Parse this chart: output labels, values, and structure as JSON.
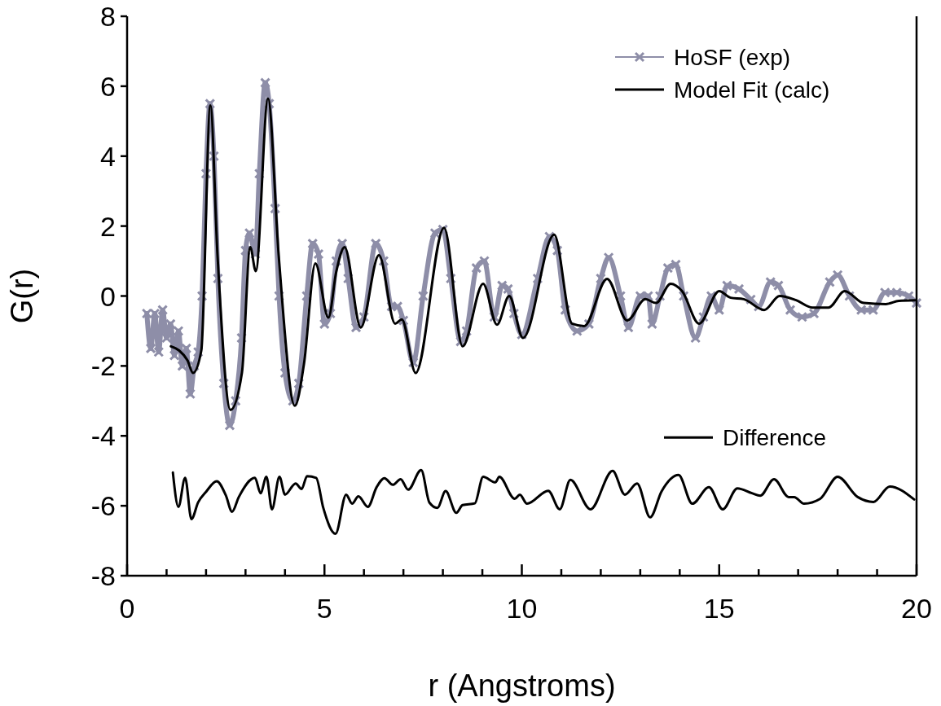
{
  "chart_data": {
    "type": "line",
    "xlabel": "r (Angstroms)",
    "ylabel": "G(r)",
    "xlim": [
      0,
      20
    ],
    "ylim": [
      -8,
      8
    ],
    "xticks": [
      0,
      {
        "value": 1,
        "label": null
      },
      {
        "value": 2,
        "label": null
      },
      {
        "value": 3,
        "label": null
      },
      {
        "value": 4,
        "label": null
      },
      5,
      {
        "value": 6,
        "label": null
      },
      {
        "value": 7,
        "label": null
      },
      {
        "value": 8,
        "label": null
      },
      {
        "value": 9,
        "label": null
      },
      10,
      {
        "value": 11,
        "label": null
      },
      {
        "value": 12,
        "label": null
      },
      {
        "value": 13,
        "label": null
      },
      {
        "value": 14,
        "label": null
      },
      15,
      {
        "value": 16,
        "label": null
      },
      {
        "value": 17,
        "label": null
      },
      {
        "value": 18,
        "label": null
      },
      {
        "value": 19,
        "label": null
      },
      20
    ],
    "yticks": [
      -8,
      -6,
      -4,
      -2,
      0,
      2,
      4,
      6,
      8
    ],
    "grid": false,
    "legend": "top right",
    "series": [
      {
        "name": "HoSF (exp)",
        "color": "#8e8ea8",
        "marker": "cross",
        "x": [
          0.5,
          0.6,
          0.7,
          0.8,
          0.9,
          1.0,
          1.1,
          1.2,
          1.3,
          1.4,
          1.5,
          1.6,
          1.7,
          1.8,
          1.9,
          2.0,
          2.1,
          2.2,
          2.3,
          2.45,
          2.6,
          2.75,
          2.9,
          3.0,
          3.1,
          3.25,
          3.35,
          3.5,
          3.6,
          3.75,
          3.85,
          4.0,
          4.2,
          4.35,
          4.55,
          4.7,
          4.85,
          5.0,
          5.15,
          5.3,
          5.45,
          5.6,
          5.8,
          6.0,
          6.3,
          6.5,
          6.7,
          6.85,
          7.0,
          7.25,
          7.5,
          7.8,
          8.0,
          8.2,
          8.45,
          8.6,
          8.85,
          9.05,
          9.3,
          9.5,
          9.65,
          9.8,
          10.0,
          10.4,
          10.7,
          10.9,
          11.1,
          11.4,
          11.7,
          12.0,
          12.2,
          12.5,
          12.7,
          13.0,
          13.2,
          13.3,
          13.5,
          13.7,
          13.9,
          14.1,
          14.4,
          14.6,
          14.8,
          15.0,
          15.2,
          15.5,
          15.8,
          16.0,
          16.3,
          16.5,
          16.8,
          17.1,
          17.4,
          17.8,
          18.0,
          18.3,
          18.6,
          18.9,
          19.2,
          19.5,
          19.8,
          20.0
        ],
        "values": [
          -0.5,
          -1.5,
          -0.5,
          -1.6,
          -0.4,
          -1.2,
          -0.8,
          -1.7,
          -1.0,
          -2.0,
          -1.5,
          -2.8,
          -2.0,
          -1.6,
          0,
          3.5,
          5.5,
          4,
          0.5,
          -2.5,
          -3.7,
          -3,
          -1.2,
          1.3,
          1.8,
          1.2,
          3.5,
          6.1,
          5.5,
          2.5,
          0,
          -2.2,
          -3.0,
          -2.5,
          0,
          1.5,
          1.2,
          -0.8,
          -0.5,
          1.0,
          1.5,
          0.5,
          -0.9,
          -0.6,
          1.5,
          1.0,
          -0.3,
          -0.3,
          -0.7,
          -1.9,
          0,
          1.8,
          1.9,
          0.5,
          -1.3,
          -1.0,
          0.8,
          1.0,
          -0.6,
          0.3,
          0.2,
          -0.5,
          -1.1,
          0.5,
          1.7,
          1.3,
          -0.4,
          -1.0,
          -0.8,
          0.5,
          1.1,
          0,
          -0.9,
          0,
          0,
          -0.8,
          0,
          0.8,
          0.9,
          0,
          -1.2,
          -0.6,
          0,
          -0.4,
          0.3,
          0.2,
          -0.1,
          -0.3,
          0.4,
          0.3,
          -0.4,
          -0.6,
          -0.5,
          0.4,
          0.6,
          0,
          -0.4,
          -0.4,
          0.1,
          0.1,
          0,
          -0.2
        ]
      },
      {
        "name": "Model Fit (calc)",
        "color": "#000000",
        "marker": "none",
        "x": [
          1.11,
          1.32,
          1.53,
          1.67,
          1.88,
          2.11,
          2.29,
          2.62,
          2.91,
          3.12,
          3.26,
          3.57,
          3.84,
          4.25,
          4.48,
          4.77,
          5.1,
          5.3,
          5.51,
          5.92,
          6.38,
          6.79,
          6.96,
          7.31,
          8.03,
          8.5,
          9.02,
          9.37,
          9.68,
          10.03,
          10.82,
          11.27,
          11.58,
          12.16,
          12.67,
          13.13,
          13.4,
          13.77,
          14.06,
          14.49,
          15.0,
          15.29,
          15.62,
          16.14,
          16.53,
          16.95,
          17.36,
          17.77,
          18.18,
          18.66,
          19.22,
          19.55,
          19.96
        ],
        "values": [
          -1.44,
          -1.56,
          -1.84,
          -2.2,
          -1.56,
          5.45,
          1.17,
          -3.26,
          -2.19,
          1.4,
          0.71,
          5.65,
          1.17,
          -3.14,
          -1.95,
          0.93,
          -0.62,
          0.7,
          1.4,
          -0.9,
          1.17,
          -0.79,
          -0.67,
          -2.2,
          1.95,
          -1.44,
          0.35,
          -0.82,
          0,
          -1.2,
          1.75,
          -0.79,
          -0.86,
          0.49,
          -0.7,
          -0.09,
          -0.2,
          0.35,
          0.14,
          -0.79,
          0.14,
          -0.05,
          -0.09,
          -0.4,
          0,
          -0.12,
          -0.33,
          -0.33,
          0.14,
          -0.2,
          -0.23,
          -0.14,
          -0.12
        ]
      },
      {
        "name": "Difference",
        "color": "#000000",
        "marker": "none",
        "x": [
          1.16,
          1.3,
          1.47,
          1.63,
          1.8,
          2.0,
          2.27,
          2.5,
          2.66,
          2.83,
          3.24,
          3.38,
          3.53,
          3.67,
          3.86,
          4.0,
          4.27,
          4.42,
          4.56,
          4.79,
          4.97,
          5.28,
          5.55,
          5.7,
          5.86,
          6.1,
          6.32,
          6.52,
          6.73,
          6.93,
          7.12,
          7.45,
          7.66,
          7.86,
          8.07,
          8.34,
          8.5,
          8.81,
          9.02,
          9.33,
          9.43,
          9.82,
          9.95,
          10.13,
          10.67,
          10.96,
          11.23,
          11.74,
          12.3,
          12.61,
          12.92,
          13.25,
          13.54,
          13.97,
          14.32,
          14.74,
          15.09,
          15.46,
          15.83,
          16.04,
          16.39,
          16.76,
          16.9,
          17.15,
          17.56,
          18.0,
          18.51,
          18.91,
          19.32,
          19.94
        ],
        "values": [
          -5.05,
          -6.03,
          -5.2,
          -6.38,
          -5.9,
          -5.6,
          -5.3,
          -5.7,
          -6.17,
          -5.75,
          -5.2,
          -5.64,
          -5.17,
          -6.1,
          -5.17,
          -5.68,
          -5.36,
          -5.52,
          -5.15,
          -5.2,
          -6.06,
          -6.8,
          -5.68,
          -5.94,
          -5.73,
          -6.03,
          -5.47,
          -5.21,
          -5.4,
          -5.24,
          -5.54,
          -4.98,
          -5.91,
          -6.06,
          -5.58,
          -6.2,
          -5.98,
          -5.93,
          -5.17,
          -5.33,
          -5.17,
          -5.8,
          -5.68,
          -5.94,
          -5.57,
          -6.1,
          -5.26,
          -6.1,
          -5.0,
          -5.68,
          -5.36,
          -6.33,
          -5.59,
          -5.12,
          -5.94,
          -5.47,
          -6.1,
          -5.5,
          -5.64,
          -5.71,
          -5.24,
          -5.75,
          -5.75,
          -5.94,
          -5.8,
          -5.17,
          -5.75,
          -5.89,
          -5.45,
          -5.82
        ]
      }
    ]
  }
}
